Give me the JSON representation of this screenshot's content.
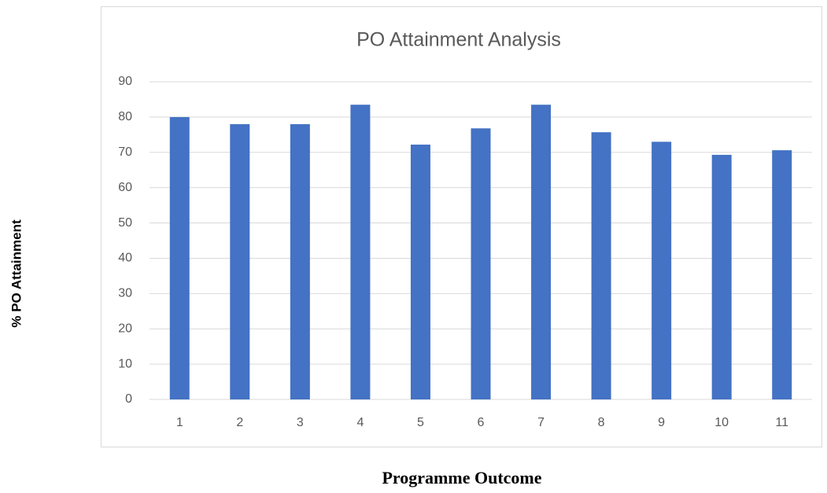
{
  "chart_data": {
    "type": "bar",
    "title": "PO Attainment Analysis",
    "x_label": "Programme Outcome",
    "y_label": "% PO Attainment",
    "categories": [
      "1",
      "2",
      "3",
      "4",
      "5",
      "6",
      "7",
      "8",
      "9",
      "10",
      "11"
    ],
    "values": [
      80,
      78,
      78,
      83.5,
      72.2,
      76.8,
      83.5,
      75.7,
      73,
      69.3,
      70.6
    ],
    "color": "#4472c4",
    "ylim": [
      0,
      90
    ],
    "yticks": [
      0,
      10,
      20,
      30,
      40,
      50,
      60,
      70,
      80,
      90
    ],
    "grid": true
  }
}
